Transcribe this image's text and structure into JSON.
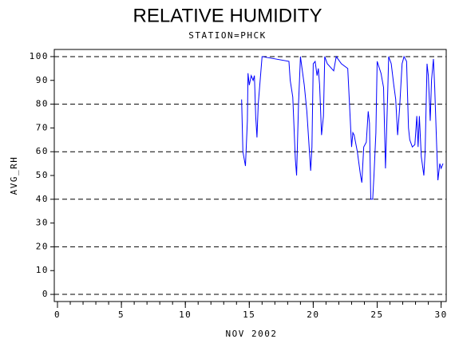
{
  "chart_data": {
    "type": "line",
    "title": "RELATIVE HUMIDITY",
    "subtitle": "STATION=PHCK",
    "x_label": "NOV 2002",
    "y_label": "AVG_RH",
    "x": [
      14.4,
      14.5,
      14.7,
      14.85,
      14.9,
      15.0,
      15.15,
      15.3,
      15.4,
      15.5,
      15.6,
      15.7,
      16.0,
      18.1,
      18.2,
      18.4,
      18.6,
      18.7,
      18.85,
      19.0,
      19.3,
      19.5,
      19.8,
      19.9,
      20.0,
      20.15,
      20.3,
      20.4,
      20.5,
      20.65,
      20.8,
      20.9,
      21.1,
      21.6,
      21.8,
      22.2,
      22.7,
      23.0,
      23.1,
      23.2,
      23.45,
      23.7,
      23.8,
      23.95,
      24.15,
      24.3,
      24.4,
      24.5,
      24.65,
      24.75,
      24.9,
      25.0,
      25.3,
      25.5,
      25.65,
      25.8,
      25.9,
      26.1,
      26.3,
      26.45,
      26.6,
      26.75,
      26.95,
      27.1,
      27.3,
      27.45,
      27.55,
      27.75,
      27.95,
      28.1,
      28.2,
      28.3,
      28.45,
      28.65,
      28.75,
      28.9,
      29.0,
      29.15,
      29.25,
      29.4,
      29.5,
      29.65,
      29.75,
      29.9,
      30.0,
      30.15
    ],
    "series": [
      {
        "color": "#0000ff",
        "values": [
          82,
          60,
          54,
          73,
          93,
          88,
          92,
          90,
          92,
          75,
          66,
          80,
          100,
          98,
          90,
          83,
          57,
          50,
          80,
          100,
          88,
          77,
          52,
          62,
          97,
          98,
          92,
          95,
          88,
          67,
          75,
          100,
          97,
          94,
          100,
          97,
          95,
          62,
          68,
          67,
          60,
          50,
          47,
          62,
          64,
          77,
          72,
          40,
          40,
          50,
          68,
          98,
          93,
          87,
          53,
          80,
          100,
          97,
          88,
          82,
          67,
          78,
          97,
          100,
          98,
          70,
          65,
          62,
          63,
          75,
          62,
          75,
          58,
          50,
          60,
          97,
          92,
          73,
          90,
          99,
          87,
          63,
          48,
          55,
          53,
          55
        ]
      }
    ],
    "xlim": [
      -0.25,
      30.4
    ],
    "ylim": [
      -3,
      103
    ],
    "xticks": [
      0,
      5,
      10,
      15,
      20,
      25,
      30
    ],
    "xminorticks": [
      0,
      1,
      2,
      3,
      4,
      5,
      6,
      7,
      8,
      9,
      10,
      11,
      12,
      13,
      14,
      15,
      16,
      17,
      18,
      19,
      20,
      21,
      22,
      23,
      24,
      25,
      26,
      27,
      28,
      29,
      30
    ],
    "yticks": [
      0,
      10,
      20,
      30,
      40,
      50,
      60,
      70,
      80,
      90,
      100
    ],
    "grid_lines": [
      0,
      20,
      40,
      60,
      80,
      100
    ]
  }
}
